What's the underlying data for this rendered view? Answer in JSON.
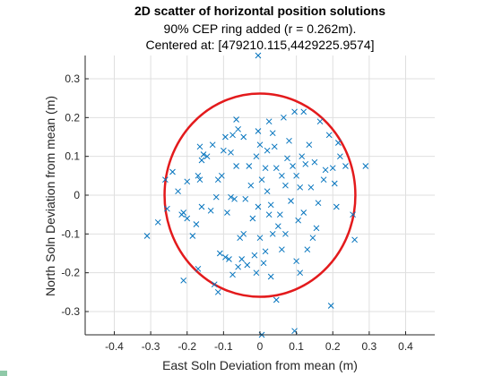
{
  "chart_data": {
    "type": "scatter",
    "title": "2D scatter of horizontal position solutions",
    "subtitle_lines": [
      "90% CEP ring added (r = 0.262m).",
      "Centered at: [479210.115,4429225.9574]"
    ],
    "xlabel": "East Soln Deviation from mean (m)",
    "ylabel": "North Soln Deviation from mean (m)",
    "xlim": [
      -0.48,
      0.48
    ],
    "ylim": [
      -0.36,
      0.36
    ],
    "xticks": [
      -0.4,
      -0.3,
      -0.2,
      -0.1,
      0,
      0.1,
      0.2,
      0.3,
      0.4
    ],
    "xtick_labels": [
      "-0.4",
      "-0.3",
      "-0.2",
      "-0.1",
      "0",
      "0.1",
      "0.2",
      "0.3",
      "0.4"
    ],
    "yticks": [
      -0.3,
      -0.2,
      -0.1,
      0,
      0.1,
      0.2,
      0.3
    ],
    "ytick_labels": [
      "-0.3",
      "-0.2",
      "-0.1",
      "0",
      "0.1",
      "0.2",
      "0.3"
    ],
    "grid": true,
    "marker": "x",
    "marker_color": "#0072bd",
    "ring": {
      "center": [
        0,
        0
      ],
      "radius": 0.262,
      "color": "#e31a1c"
    },
    "points": [
      [
        -0.005,
        0.36
      ],
      [
        -0.31,
        -0.105
      ],
      [
        -0.28,
        -0.07
      ],
      [
        -0.26,
        0.04
      ],
      [
        -0.255,
        -0.035
      ],
      [
        -0.24,
        0.06
      ],
      [
        -0.225,
        0.01
      ],
      [
        -0.215,
        -0.05
      ],
      [
        -0.21,
        -0.045
      ],
      [
        -0.21,
        -0.22
      ],
      [
        -0.2,
        -0.06
      ],
      [
        -0.2,
        0.035
      ],
      [
        -0.185,
        -0.105
      ],
      [
        -0.17,
        -0.19
      ],
      [
        -0.175,
        -0.075
      ],
      [
        -0.17,
        0.05
      ],
      [
        -0.165,
        0.04
      ],
      [
        -0.16,
        0.09
      ],
      [
        -0.165,
        0.125
      ],
      [
        -0.16,
        -0.03
      ],
      [
        -0.155,
        0.105
      ],
      [
        -0.145,
        0.1
      ],
      [
        -0.135,
        -0.04
      ],
      [
        -0.13,
        0.13
      ],
      [
        -0.125,
        -0.23
      ],
      [
        -0.12,
        -0.005
      ],
      [
        -0.115,
        0.04
      ],
      [
        -0.115,
        -0.25
      ],
      [
        -0.11,
        -0.15
      ],
      [
        -0.105,
        0.05
      ],
      [
        -0.1,
        0.115
      ],
      [
        -0.095,
        0.15
      ],
      [
        -0.095,
        -0.16
      ],
      [
        -0.09,
        -0.045
      ],
      [
        -0.085,
        -0.165
      ],
      [
        -0.08,
        0.11
      ],
      [
        -0.08,
        -0.005
      ],
      [
        -0.075,
        0.155
      ],
      [
        -0.075,
        -0.205
      ],
      [
        -0.07,
        -0.01
      ],
      [
        -0.065,
        0.075
      ],
      [
        -0.065,
        0.195
      ],
      [
        -0.06,
        -0.185
      ],
      [
        -0.06,
        0.17
      ],
      [
        -0.055,
        -0.11
      ],
      [
        -0.05,
        -0.165
      ],
      [
        -0.045,
        0.15
      ],
      [
        -0.045,
        -0.1
      ],
      [
        -0.04,
        -0.01
      ],
      [
        -0.035,
        -0.18
      ],
      [
        -0.03,
        0.075
      ],
      [
        -0.025,
        0.025
      ],
      [
        -0.02,
        -0.06
      ],
      [
        -0.015,
        -0.155
      ],
      [
        -0.01,
        -0.2
      ],
      [
        -0.01,
        0.1
      ],
      [
        -0.005,
        0.165
      ],
      [
        -0.005,
        -0.03
      ],
      [
        0.0,
        0.13
      ],
      [
        0.0,
        -0.11
      ],
      [
        0.005,
        0.04
      ],
      [
        0.005,
        -0.36
      ],
      [
        0.01,
        -0.175
      ],
      [
        0.015,
        0.07
      ],
      [
        0.015,
        -0.145
      ],
      [
        0.02,
        0.01
      ],
      [
        0.02,
        0.115
      ],
      [
        0.025,
        -0.05
      ],
      [
        0.025,
        0.19
      ],
      [
        0.03,
        -0.025
      ],
      [
        0.03,
        -0.21
      ],
      [
        0.035,
        0.16
      ],
      [
        0.035,
        -0.1
      ],
      [
        0.04,
        0.125
      ],
      [
        0.045,
        0.07
      ],
      [
        0.045,
        -0.27
      ],
      [
        0.05,
        -0.08
      ],
      [
        0.055,
        -0.05
      ],
      [
        0.06,
        0.05
      ],
      [
        0.06,
        -0.14
      ],
      [
        0.065,
        0.2
      ],
      [
        0.07,
        0.025
      ],
      [
        0.07,
        -0.1
      ],
      [
        0.075,
        0.095
      ],
      [
        0.08,
        0.14
      ],
      [
        0.085,
        -0.015
      ],
      [
        0.09,
        0.075
      ],
      [
        0.095,
        0.215
      ],
      [
        0.095,
        -0.35
      ],
      [
        0.1,
        0.05
      ],
      [
        0.1,
        -0.17
      ],
      [
        0.105,
        -0.065
      ],
      [
        0.11,
        0.02
      ],
      [
        0.11,
        -0.2
      ],
      [
        0.115,
        0.1
      ],
      [
        0.12,
        0.215
      ],
      [
        0.12,
        -0.045
      ],
      [
        0.125,
        0.08
      ],
      [
        0.13,
        -0.14
      ],
      [
        0.135,
        0.13
      ],
      [
        0.14,
        0.02
      ],
      [
        0.145,
        -0.11
      ],
      [
        0.15,
        0.085
      ],
      [
        0.155,
        -0.085
      ],
      [
        0.16,
        -0.02
      ],
      [
        0.165,
        0.19
      ],
      [
        0.175,
        0.04
      ],
      [
        0.18,
        0.065
      ],
      [
        0.19,
        0.155
      ],
      [
        0.195,
        -0.285
      ],
      [
        0.2,
        0.07
      ],
      [
        0.205,
        0.03
      ],
      [
        0.21,
        -0.03
      ],
      [
        0.215,
        0.135
      ],
      [
        0.22,
        0.1
      ],
      [
        0.235,
        0.075
      ],
      [
        0.255,
        -0.05
      ],
      [
        0.26,
        -0.115
      ],
      [
        0.29,
        0.075
      ]
    ]
  }
}
